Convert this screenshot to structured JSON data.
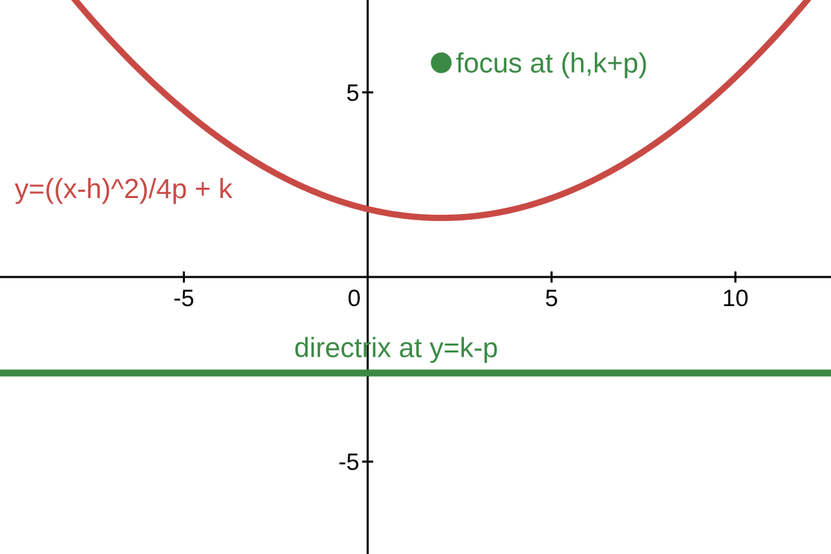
{
  "chart_data": {
    "type": "line",
    "title": "",
    "xlabel": "",
    "ylabel": "",
    "xlim": [
      -10,
      12.6
    ],
    "ylim": [
      -7.5,
      7.5
    ],
    "grid": false,
    "legend": "none",
    "x_ticks": [
      {
        "value": -5,
        "label": "-5"
      },
      {
        "value": 0,
        "label": "0"
      },
      {
        "value": 5,
        "label": "5"
      },
      {
        "value": 10,
        "label": "10"
      }
    ],
    "y_ticks": [
      {
        "value": 5,
        "label": "5"
      },
      {
        "value": -5,
        "label": "-5"
      }
    ],
    "params": {
      "h": 2,
      "k": 1.6,
      "p": 4.2
    },
    "series": [
      {
        "kind": "parabola",
        "color": "#c94a45"
      },
      {
        "kind": "directrix",
        "color": "#3a8a44"
      }
    ],
    "focus_point": {
      "x": 2,
      "y": 5.8,
      "color": "#3a8a44"
    },
    "annotations": [
      {
        "id": "equation",
        "text": "y=((x-h)^2)/4p + k",
        "color": "#c94a45",
        "x": -9.6,
        "y": 2.4
      },
      {
        "id": "focus",
        "text": "focus at (h,k+p)",
        "color": "#3a8a44",
        "x": 2.4,
        "y": 5.8
      },
      {
        "id": "directrix",
        "text": "directrix at y=k-p",
        "color": "#3a8a44",
        "x": -2.0,
        "y": -1.9
      }
    ]
  }
}
